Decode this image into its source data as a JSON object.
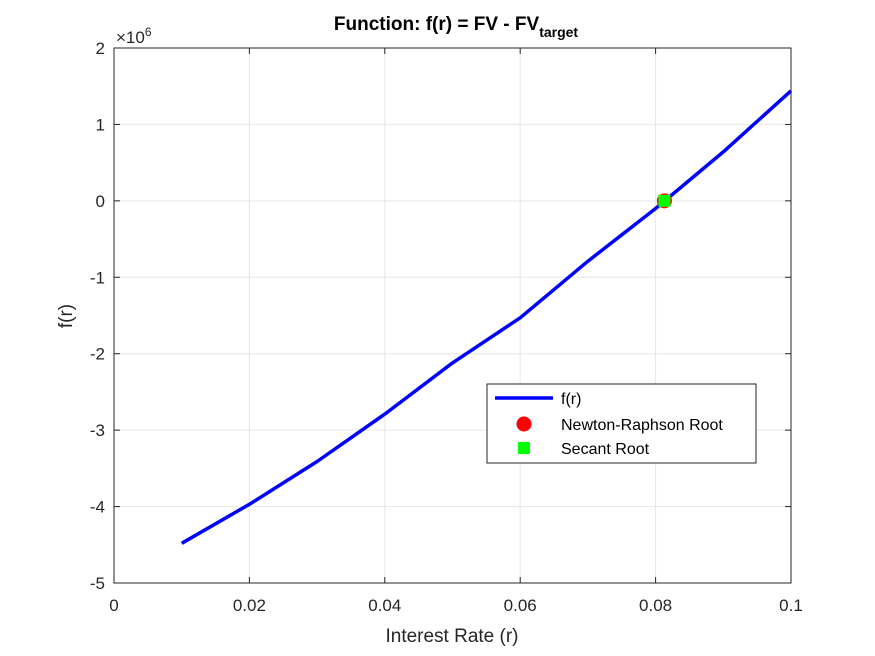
{
  "chart_data": {
    "type": "line",
    "title": "Function: f(r) = FV - FV",
    "title_subscript": "target",
    "xlabel": "Interest Rate (r)",
    "ylabel": "f(r)",
    "exponent_base": "×10",
    "exponent_power": "6",
    "xlim": [
      0,
      0.1
    ],
    "ylim": [
      -5,
      2
    ],
    "y_scale": 1000000,
    "xticks": [
      0,
      0.02,
      0.04,
      0.06,
      0.08,
      0.1
    ],
    "xtick_labels": [
      "0",
      "0.02",
      "0.04",
      "0.06",
      "0.08",
      "0.1"
    ],
    "yticks": [
      -5,
      -4,
      -3,
      -2,
      -1,
      0,
      1,
      2
    ],
    "ytick_labels": [
      "-5",
      "-4",
      "-3",
      "-2",
      "-1",
      "0",
      "1",
      "2"
    ],
    "grid": true,
    "legend_position": "lower-right",
    "series": [
      {
        "name": "f(r)",
        "color": "#0000ff",
        "x": [
          0.01,
          0.02,
          0.03,
          0.04,
          0.05,
          0.06,
          0.07,
          0.08,
          0.09,
          0.1
        ],
        "y": [
          -4.48,
          -3.97,
          -3.41,
          -2.79,
          -2.12,
          -1.53,
          -0.79,
          -0.1,
          0.64,
          1.44
        ]
      }
    ],
    "markers": [
      {
        "name": "Newton-Raphson Root",
        "shape": "circle",
        "color": "#ff0000",
        "x": 0.0813,
        "y": 0
      },
      {
        "name": "Secant Root",
        "shape": "square",
        "color": "#00ff00",
        "x": 0.0813,
        "y": 0
      }
    ]
  }
}
